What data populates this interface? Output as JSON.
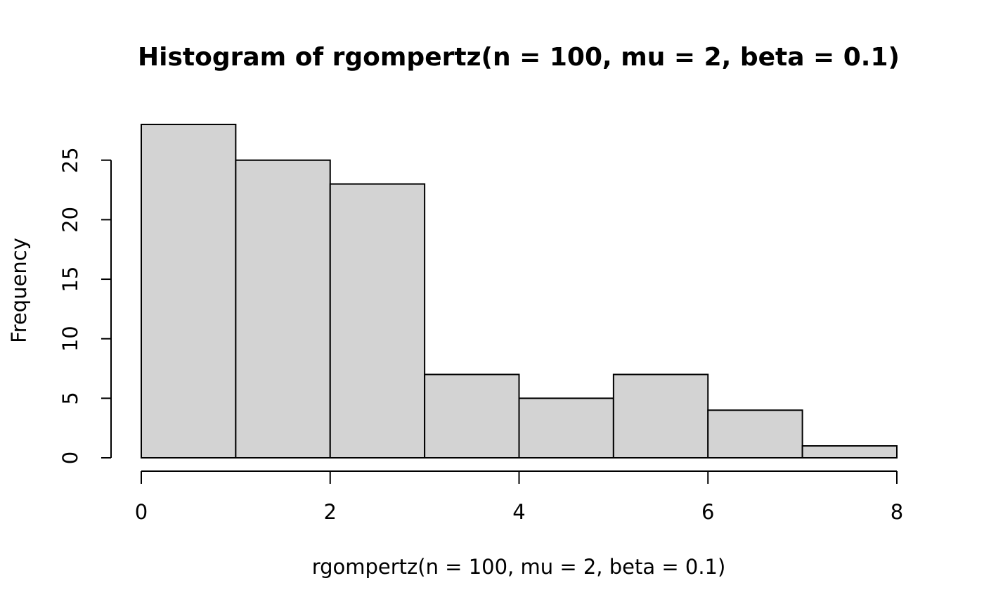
{
  "chart_data": {
    "type": "bar",
    "title": "Histogram of rgompertz(n = 100, mu = 2, beta = 0.1)",
    "xlabel": "rgompertz(n = 100, mu = 2, beta = 0.1)",
    "ylabel": "Frequency",
    "bins": [
      {
        "from": 0,
        "to": 1,
        "count": 28
      },
      {
        "from": 1,
        "to": 2,
        "count": 25
      },
      {
        "from": 2,
        "to": 3,
        "count": 23
      },
      {
        "from": 3,
        "to": 4,
        "count": 7
      },
      {
        "from": 4,
        "to": 5,
        "count": 5
      },
      {
        "from": 5,
        "to": 6,
        "count": 7
      },
      {
        "from": 6,
        "to": 7,
        "count": 4
      },
      {
        "from": 7,
        "to": 8,
        "count": 1
      }
    ],
    "xlim": [
      0,
      8
    ],
    "ylim": [
      0,
      28
    ],
    "x_ticks": [
      0,
      2,
      4,
      6,
      8
    ],
    "x_tick_labels": [
      "0",
      "2",
      "4",
      "6",
      "8"
    ],
    "y_ticks": [
      0,
      5,
      10,
      15,
      20,
      25
    ],
    "y_tick_labels": [
      "0",
      "5",
      "10",
      "15",
      "20",
      "25"
    ],
    "grid": false,
    "colors": {
      "bar_fill": "#d3d3d3",
      "bar_stroke": "#000000"
    }
  }
}
